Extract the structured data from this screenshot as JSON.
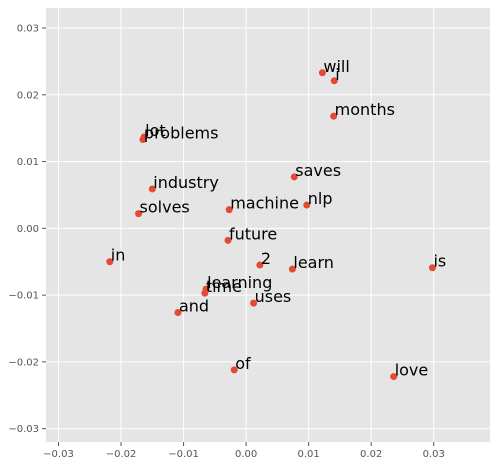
{
  "chart_data": {
    "type": "scatter",
    "title": "",
    "xlabel": "",
    "ylabel": "",
    "xlim": [
      -0.032,
      0.039
    ],
    "ylim": [
      -0.032,
      0.033
    ],
    "xticks": [
      -0.03,
      -0.02,
      -0.01,
      0.0,
      0.01,
      0.02,
      0.03
    ],
    "yticks": [
      -0.03,
      -0.02,
      -0.01,
      0.0,
      0.01,
      0.02,
      0.03
    ],
    "xtick_labels": [
      "−0.03",
      "−0.02",
      "−0.01",
      "0.00",
      "0.01",
      "0.02",
      "0.03"
    ],
    "ytick_labels": [
      "−0.03",
      "−0.02",
      "−0.01",
      "0.00",
      "0.01",
      "0.02",
      "0.03"
    ],
    "grid": true,
    "background_color": "#e5e5e5",
    "grid_color": "#ffffff",
    "marker_color": "#e24a33",
    "points": [
      {
        "label": "will",
        "x": 0.0122,
        "y": 0.0233
      },
      {
        "label": "i",
        "x": 0.0141,
        "y": 0.0221
      },
      {
        "label": "months",
        "x": 0.014,
        "y": 0.0168
      },
      {
        "label": "lot",
        "x": -0.0163,
        "y": 0.0137
      },
      {
        "label": "problems",
        "x": -0.0165,
        "y": 0.0133
      },
      {
        "label": "saves",
        "x": 0.0077,
        "y": 0.0077
      },
      {
        "label": "industry",
        "x": -0.015,
        "y": 0.0059
      },
      {
        "label": "nlp",
        "x": 0.0097,
        "y": 0.0035
      },
      {
        "label": "machine",
        "x": -0.0027,
        "y": 0.0028
      },
      {
        "label": "solves",
        "x": -0.0172,
        "y": 0.0022
      },
      {
        "label": "future",
        "x": -0.0029,
        "y": -0.0018
      },
      {
        "label": "in",
        "x": -0.0218,
        "y": -0.005
      },
      {
        "label": "2",
        "x": 0.0022,
        "y": -0.0055
      },
      {
        "label": "learn",
        "x": 0.0074,
        "y": -0.0061
      },
      {
        "label": "is",
        "x": 0.0298,
        "y": -0.0059
      },
      {
        "label": "learning",
        "x": -0.0064,
        "y": -0.0091
      },
      {
        "label": "time",
        "x": -0.0066,
        "y": -0.0097
      },
      {
        "label": "uses",
        "x": 0.0012,
        "y": -0.0112
      },
      {
        "label": "and",
        "x": -0.0109,
        "y": -0.0126
      },
      {
        "label": "of",
        "x": -0.0019,
        "y": -0.0212
      },
      {
        "label": "love",
        "x": 0.0236,
        "y": -0.0222
      }
    ]
  }
}
